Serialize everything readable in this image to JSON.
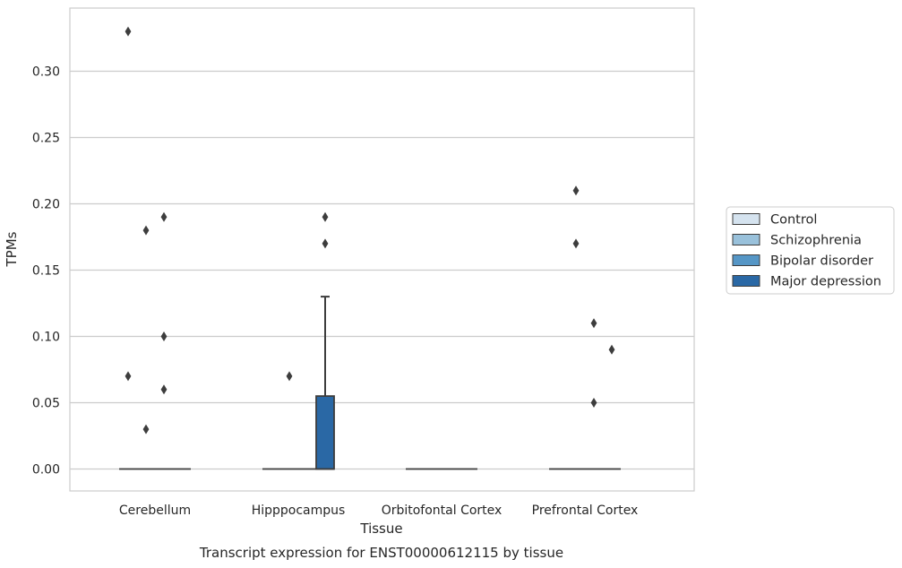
{
  "chart_data": {
    "type": "box",
    "title": "",
    "caption": "Transcript expression for ENST00000612115 by tissue",
    "xlabel": "Tissue",
    "ylabel": "TPMs",
    "ylim": [
      -0.017,
      0.348
    ],
    "yticks": [
      "0.00",
      "0.05",
      "0.10",
      "0.15",
      "0.20",
      "0.25",
      "0.30"
    ],
    "grid": true,
    "legend_position": "right",
    "categories": [
      "Cerebellum",
      "Hipppocampus",
      "Orbitofontal Cortex",
      "Prefrontal Cortex"
    ],
    "series": [
      {
        "name": "Control",
        "color": "#d5e3ef",
        "boxes": [
          {
            "category": "Cerebellum",
            "q1": 0,
            "median": 0,
            "q3": 0,
            "whisker_low": 0,
            "whisker_high": 0,
            "outliers": [
              0.33,
              0.07
            ]
          },
          {
            "category": "Hipppocampus",
            "q1": 0,
            "median": 0,
            "q3": 0,
            "whisker_low": 0,
            "whisker_high": 0,
            "outliers": []
          },
          {
            "category": "Orbitofontal Cortex",
            "q1": 0,
            "median": 0,
            "q3": 0,
            "whisker_low": 0,
            "whisker_high": 0,
            "outliers": []
          },
          {
            "category": "Prefrontal Cortex",
            "q1": 0,
            "median": 0,
            "q3": 0,
            "whisker_low": 0,
            "whisker_high": 0,
            "outliers": []
          }
        ]
      },
      {
        "name": "Schizophrenia",
        "color": "#99c1db",
        "boxes": [
          {
            "category": "Cerebellum",
            "q1": 0,
            "median": 0,
            "q3": 0,
            "whisker_low": 0,
            "whisker_high": 0,
            "outliers": [
              0.18,
              0.03
            ]
          },
          {
            "category": "Hipppocampus",
            "q1": 0,
            "median": 0,
            "q3": 0,
            "whisker_low": 0,
            "whisker_high": 0,
            "outliers": [
              0.07
            ]
          },
          {
            "category": "Orbitofontal Cortex",
            "q1": 0,
            "median": 0,
            "q3": 0,
            "whisker_low": 0,
            "whisker_high": 0,
            "outliers": []
          },
          {
            "category": "Prefrontal Cortex",
            "q1": 0,
            "median": 0,
            "q3": 0,
            "whisker_low": 0,
            "whisker_high": 0,
            "outliers": [
              0.21,
              0.17
            ]
          }
        ]
      },
      {
        "name": "Bipolar disorder",
        "color": "#5596c6",
        "boxes": [
          {
            "category": "Cerebellum",
            "q1": 0,
            "median": 0,
            "q3": 0,
            "whisker_low": 0,
            "whisker_high": 0,
            "outliers": [
              0.19,
              0.1,
              0.06
            ]
          },
          {
            "category": "Hipppocampus",
            "q1": 0,
            "median": 0,
            "q3": 0,
            "whisker_low": 0,
            "whisker_high": 0,
            "outliers": []
          },
          {
            "category": "Orbitofontal Cortex",
            "q1": 0,
            "median": 0,
            "q3": 0,
            "whisker_low": 0,
            "whisker_high": 0,
            "outliers": []
          },
          {
            "category": "Prefrontal Cortex",
            "q1": 0,
            "median": 0,
            "q3": 0,
            "whisker_low": 0,
            "whisker_high": 0,
            "outliers": [
              0.11,
              0.05
            ]
          }
        ]
      },
      {
        "name": "Major depression",
        "color": "#2a68a5",
        "boxes": [
          {
            "category": "Cerebellum",
            "q1": 0,
            "median": 0,
            "q3": 0,
            "whisker_low": 0,
            "whisker_high": 0,
            "outliers": []
          },
          {
            "category": "Hipppocampus",
            "q1": 0,
            "median": 0,
            "q3": 0.055,
            "whisker_low": 0,
            "whisker_high": 0.13,
            "outliers": [
              0.19,
              0.17
            ]
          },
          {
            "category": "Orbitofontal Cortex",
            "q1": 0,
            "median": 0,
            "q3": 0,
            "whisker_low": 0,
            "whisker_high": 0,
            "outliers": []
          },
          {
            "category": "Prefrontal Cortex",
            "q1": 0,
            "median": 0,
            "q3": 0,
            "whisker_low": 0,
            "whisker_high": 0,
            "outliers": [
              0.09
            ]
          }
        ]
      }
    ],
    "colors": {
      "grid": "#cccccc",
      "frame": "#cccccc",
      "line": "#3d3d3d",
      "outlier": "#3d3d3d"
    }
  }
}
